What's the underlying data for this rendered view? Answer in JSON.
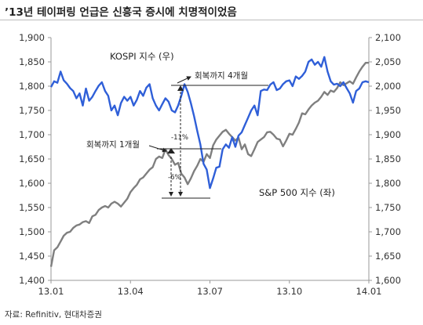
{
  "title": "’13년 테이퍼링 언급은 신흥국 증시에 치명적이었음",
  "source": "자료: Refinitiv, 현대차증권",
  "chart_data": {
    "type": "line",
    "x_ticks": [
      "13.01",
      "13.04",
      "13.07",
      "13.10",
      "14.01"
    ],
    "y_left": {
      "ticks": [
        "1,400",
        "1,450",
        "1,500",
        "1,550",
        "1,600",
        "1,650",
        "1,700",
        "1,750",
        "1,800",
        "1,850",
        "1,900"
      ],
      "range": [
        1400,
        1900
      ]
    },
    "y_right": {
      "ticks": [
        "1,600",
        "1,650",
        "1,700",
        "1,750",
        "1,800",
        "1,850",
        "1,900",
        "1,950",
        "2,000",
        "2,050",
        "2,100"
      ],
      "range": [
        1600,
        2100
      ]
    },
    "series": [
      {
        "name": "KOSPI 지수 (우)",
        "axis": "right",
        "color": "#2f5fd8",
        "x": [
          0,
          0.01,
          0.02,
          0.03,
          0.04,
          0.05,
          0.06,
          0.07,
          0.08,
          0.09,
          0.1,
          0.11,
          0.12,
          0.13,
          0.14,
          0.15,
          0.16,
          0.17,
          0.18,
          0.19,
          0.2,
          0.21,
          0.22,
          0.23,
          0.24,
          0.25,
          0.26,
          0.27,
          0.28,
          0.29,
          0.3,
          0.31,
          0.32,
          0.33,
          0.34,
          0.35,
          0.36,
          0.37,
          0.38,
          0.39,
          0.4,
          0.41,
          0.42,
          0.43,
          0.44,
          0.45,
          0.46,
          0.47,
          0.48,
          0.49,
          0.5,
          0.51,
          0.52,
          0.53,
          0.54,
          0.55,
          0.56,
          0.57,
          0.58,
          0.59,
          0.6,
          0.61,
          0.62,
          0.63,
          0.64,
          0.65,
          0.66,
          0.67,
          0.68,
          0.69,
          0.7,
          0.71,
          0.72,
          0.73,
          0.74,
          0.75,
          0.76,
          0.77,
          0.78,
          0.79,
          0.8,
          0.81,
          0.82,
          0.83,
          0.84,
          0.85,
          0.86,
          0.87,
          0.88,
          0.89,
          0.9,
          0.91,
          0.92,
          0.93,
          0.94,
          0.95,
          0.96,
          0.97,
          0.98,
          0.99,
          1.0
        ],
        "values": [
          1998,
          2010,
          2007,
          2030,
          2012,
          2005,
          1996,
          1990,
          1975,
          1985,
          1960,
          1995,
          1970,
          1978,
          1990,
          2001,
          2008,
          1990,
          1980,
          1950,
          1960,
          1940,
          1965,
          1978,
          1970,
          1978,
          1960,
          1972,
          1990,
          1980,
          1997,
          2004,
          1975,
          1960,
          1950,
          1963,
          1975,
          1968,
          1950,
          1946,
          1960,
          1980,
          2004,
          1988,
          1965,
          1938,
          1908,
          1880,
          1840,
          1828,
          1790,
          1810,
          1832,
          1834,
          1870,
          1880,
          1873,
          1895,
          1875,
          1898,
          1905,
          1920,
          1935,
          1950,
          1960,
          1940,
          1990,
          1993,
          1992,
          2003,
          2008,
          1992,
          1995,
          2004,
          2010,
          2012,
          2000,
          2020,
          2015,
          2021,
          2030,
          2050,
          2055,
          2044,
          2050,
          2040,
          2060,
          2030,
          2010,
          2003,
          2005,
          2000,
          2008,
          1996,
          1985,
          1966,
          1990,
          1995,
          2008,
          2010,
          2008
        ]
      },
      {
        "name": "S&P 500 지수 (좌)",
        "axis": "left",
        "color": "#7f7f7f",
        "x": [
          0,
          0.01,
          0.02,
          0.03,
          0.04,
          0.05,
          0.06,
          0.07,
          0.08,
          0.09,
          0.1,
          0.11,
          0.12,
          0.13,
          0.14,
          0.15,
          0.16,
          0.17,
          0.18,
          0.19,
          0.2,
          0.21,
          0.22,
          0.23,
          0.24,
          0.25,
          0.26,
          0.27,
          0.28,
          0.29,
          0.3,
          0.31,
          0.32,
          0.33,
          0.34,
          0.35,
          0.36,
          0.37,
          0.38,
          0.39,
          0.4,
          0.41,
          0.42,
          0.43,
          0.44,
          0.45,
          0.46,
          0.47,
          0.48,
          0.49,
          0.5,
          0.51,
          0.52,
          0.53,
          0.54,
          0.55,
          0.56,
          0.57,
          0.58,
          0.59,
          0.6,
          0.61,
          0.62,
          0.63,
          0.64,
          0.65,
          0.66,
          0.67,
          0.68,
          0.69,
          0.7,
          0.71,
          0.72,
          0.73,
          0.74,
          0.75,
          0.76,
          0.77,
          0.78,
          0.79,
          0.8,
          0.81,
          0.82,
          0.83,
          0.84,
          0.85,
          0.86,
          0.87,
          0.88,
          0.89,
          0.9,
          0.91,
          0.92,
          0.93,
          0.94,
          0.95,
          0.96,
          0.97,
          0.98,
          0.99,
          1.0
        ],
        "values": [
          1428,
          1462,
          1468,
          1480,
          1492,
          1498,
          1500,
          1508,
          1513,
          1515,
          1520,
          1522,
          1518,
          1532,
          1535,
          1545,
          1550,
          1553,
          1550,
          1558,
          1562,
          1558,
          1552,
          1560,
          1568,
          1582,
          1590,
          1597,
          1608,
          1612,
          1620,
          1628,
          1633,
          1650,
          1655,
          1652,
          1670,
          1658,
          1650,
          1638,
          1642,
          1620,
          1612,
          1598,
          1610,
          1625,
          1636,
          1650,
          1644,
          1660,
          1652,
          1678,
          1690,
          1698,
          1706,
          1710,
          1702,
          1695,
          1688,
          1694,
          1670,
          1680,
          1660,
          1656,
          1670,
          1685,
          1690,
          1695,
          1705,
          1706,
          1700,
          1692,
          1690,
          1676,
          1688,
          1702,
          1700,
          1712,
          1725,
          1744,
          1742,
          1752,
          1760,
          1766,
          1770,
          1778,
          1788,
          1782,
          1791,
          1788,
          1796,
          1808,
          1802,
          1806,
          1810,
          1805,
          1818,
          1830,
          1840,
          1848,
          1848
        ]
      }
    ],
    "annotations": [
      {
        "text": "회복까지 4개월"
      },
      {
        "text": "회복까지 1개월"
      },
      {
        "text": "-11%"
      },
      {
        "text": "-6%"
      }
    ],
    "legend": "inline labels",
    "grid": false
  }
}
